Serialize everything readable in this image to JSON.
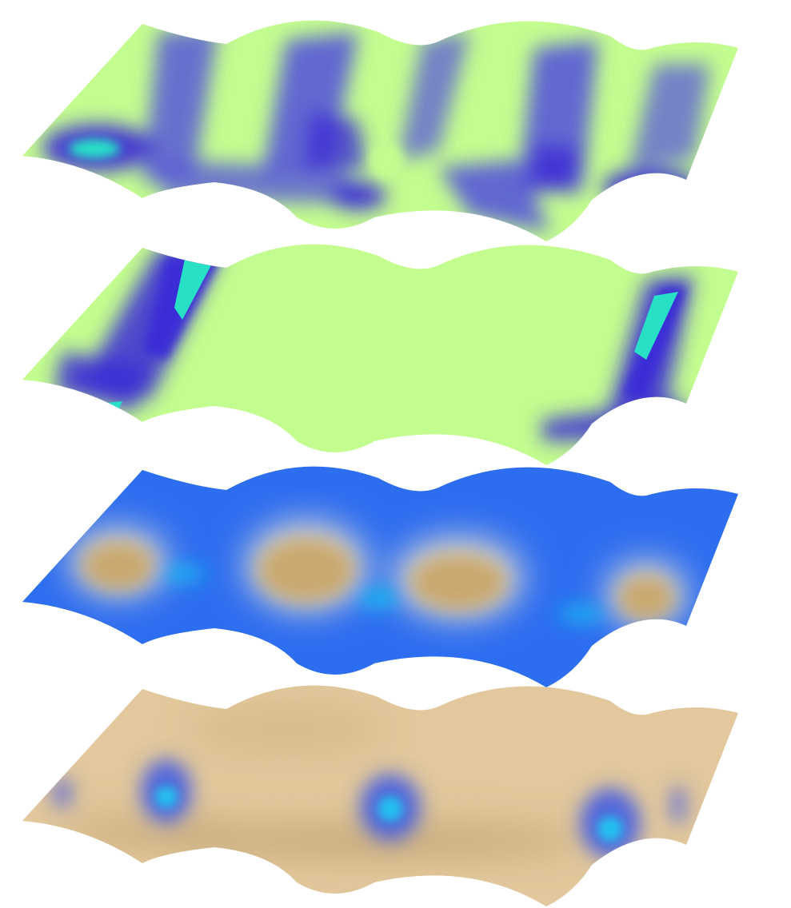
{
  "figure": {
    "background": "#ffffff",
    "panel_count": 4
  },
  "panels": [
    {
      "id": "panel-1",
      "base_color": "#c4fd8f",
      "accent_colors": [
        "#5858d8",
        "#3a2ad6",
        "#28e0c6"
      ],
      "pattern": "diagonal-bands"
    },
    {
      "id": "panel-2",
      "base_color": "#c4fd8f",
      "accent_colors": [
        "#3a2ad6",
        "#28e0c6"
      ],
      "pattern": "corner-wedges"
    },
    {
      "id": "panel-3",
      "base_color": "#2d6df0",
      "accent_colors": [
        "#c9a86e",
        "#f2e5cc",
        "#18b6f0"
      ],
      "pattern": "tan-lobes"
    },
    {
      "id": "panel-4",
      "base_color": "#e2c89c",
      "accent_colors": [
        "#b89868",
        "#3a55e6",
        "#21c0f0"
      ],
      "pattern": "blue-spots"
    }
  ]
}
